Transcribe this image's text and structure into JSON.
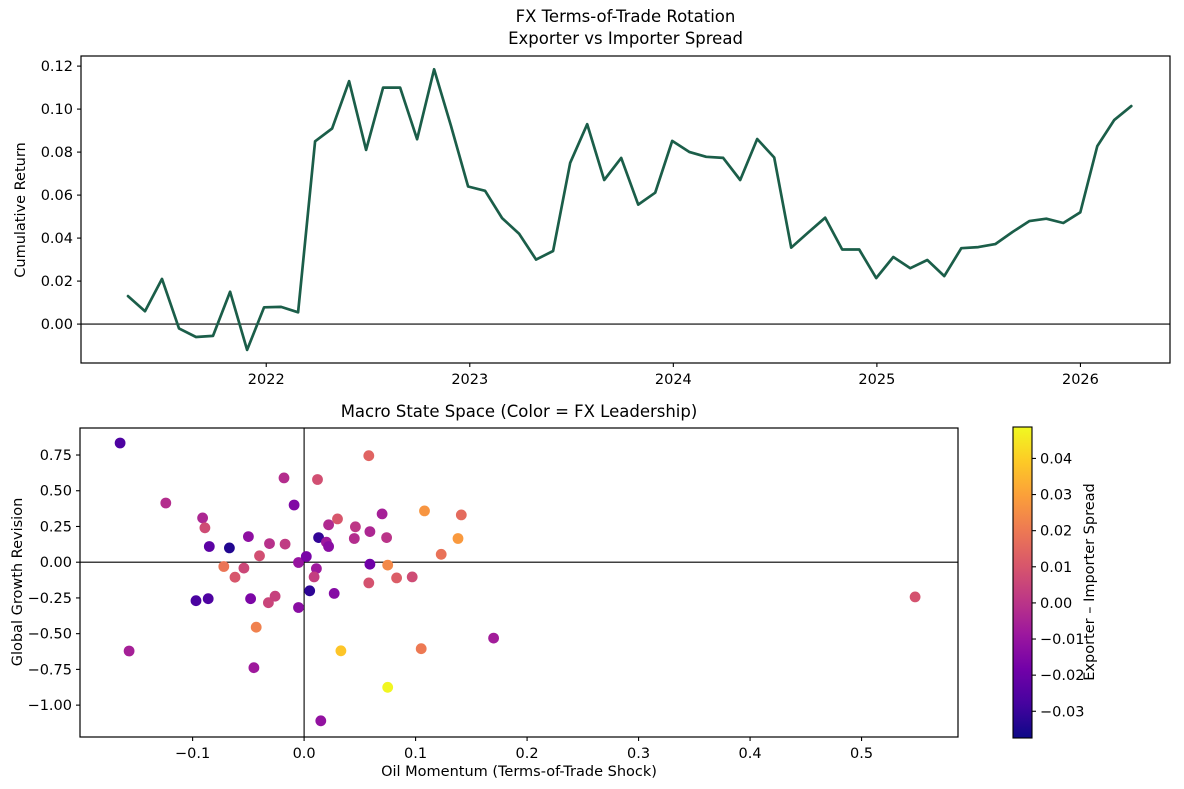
{
  "figure": {
    "background": "#ffffff",
    "line_color": "#1b5e49",
    "colormap": "plasma",
    "text_color": "#000000"
  },
  "chart_data": [
    {
      "type": "line",
      "title": "FX Terms-of-Trade Rotation",
      "subtitle": "Exporter vs Importer Spread",
      "xlabel": "",
      "ylabel": "Cumulative Return",
      "xlim": [
        2021.09,
        2026.44
      ],
      "ylim": [
        -0.0181,
        0.1247
      ],
      "x_start": 2021.321,
      "x_end": 2026.25,
      "x_ticks": [
        2022,
        2023,
        2024,
        2025,
        2026
      ],
      "x_tick_labels": [
        "2022",
        "2023",
        "2024",
        "2025",
        "2026"
      ],
      "y_ticks": [
        0.0,
        0.02,
        0.04,
        0.06,
        0.08,
        0.1,
        0.12
      ],
      "y_tick_labels": [
        "0.00",
        "0.02",
        "0.04",
        "0.06",
        "0.08",
        "0.10",
        "0.12"
      ],
      "zero_line": 0.0,
      "grid": false,
      "values": [
        0.013,
        0.006,
        0.021,
        -0.002,
        -0.006,
        -0.0055,
        0.015,
        -0.012,
        0.0078,
        0.008,
        0.0055,
        0.085,
        0.091,
        0.113,
        0.081,
        0.11,
        0.11,
        0.086,
        0.1185,
        0.092,
        0.064,
        0.062,
        0.0493,
        0.042,
        0.03,
        0.034,
        0.075,
        0.093,
        0.067,
        0.0773,
        0.0556,
        0.0611,
        0.0852,
        0.0801,
        0.0778,
        0.0773,
        0.067,
        0.0861,
        0.0775,
        0.0356,
        0.0426,
        0.0495,
        0.0347,
        0.0347,
        0.0214,
        0.0312,
        0.026,
        0.0298,
        0.0223,
        0.0353,
        0.0358,
        0.0372,
        0.0428,
        0.0479,
        0.049,
        0.047,
        0.052,
        0.0828,
        0.095,
        0.1014
      ]
    },
    {
      "type": "scatter",
      "title": "Macro State Space (Color = FX Leadership)",
      "xlabel": "Oil Momentum (Terms-of-Trade Shock)",
      "ylabel": "Global Growth Revision",
      "xlim": [
        -0.201,
        0.5865
      ],
      "ylim": [
        -1.223,
        0.939
      ],
      "x_ticks": [
        -0.1,
        0.0,
        0.1,
        0.2,
        0.3,
        0.4,
        0.5
      ],
      "x_tick_labels": [
        "−0.1",
        "0.0",
        "0.1",
        "0.2",
        "0.3",
        "0.4",
        "0.5"
      ],
      "y_ticks": [
        0.75,
        0.5,
        0.25,
        0.0,
        -0.25,
        -0.5,
        -0.75,
        -1.0
      ],
      "y_tick_labels": [
        "0.75",
        "0.50",
        "0.25",
        "0.00",
        "−0.25",
        "−0.50",
        "−0.75",
        "−1.00"
      ],
      "zero_cross_lines": true,
      "grid": false,
      "points": [
        [
          -0.165,
          0.834,
          -0.026
        ],
        [
          -0.124,
          0.414,
          -0.002
        ],
        [
          -0.091,
          0.31,
          -0.004
        ],
        [
          -0.089,
          0.241,
          0.007
        ],
        [
          -0.085,
          0.11,
          -0.023
        ],
        [
          -0.067,
          0.1,
          -0.034
        ],
        [
          -0.05,
          0.179,
          -0.012
        ],
        [
          -0.031,
          0.13,
          -0.001
        ],
        [
          -0.017,
          0.127,
          0.002
        ],
        [
          -0.04,
          0.045,
          0.008
        ],
        [
          -0.018,
          0.59,
          -0.002
        ],
        [
          0.012,
          0.579,
          0.008
        ],
        [
          -0.009,
          0.4,
          -0.015
        ],
        [
          0.058,
          0.745,
          0.014
        ],
        [
          -0.072,
          -0.03,
          0.019
        ],
        [
          -0.062,
          -0.105,
          0.01
        ],
        [
          -0.054,
          -0.041,
          0.006
        ],
        [
          -0.043,
          -0.455,
          0.022
        ],
        [
          -0.045,
          -0.738,
          -0.008
        ],
        [
          -0.097,
          -0.269,
          -0.027
        ],
        [
          -0.086,
          -0.255,
          -0.026
        ],
        [
          -0.048,
          -0.255,
          -0.016
        ],
        [
          -0.032,
          -0.283,
          0.005
        ],
        [
          -0.026,
          -0.238,
          0.004
        ],
        [
          -0.005,
          -0.317,
          -0.013
        ],
        [
          -0.005,
          -0.002,
          -0.01
        ],
        [
          0.002,
          0.04,
          -0.017
        ],
        [
          0.013,
          0.172,
          -0.031
        ],
        [
          0.02,
          0.14,
          -0.008
        ],
        [
          0.022,
          0.11,
          -0.013
        ],
        [
          0.022,
          0.262,
          -0.003
        ],
        [
          0.03,
          0.303,
          0.01
        ],
        [
          0.046,
          0.248,
          0.001
        ],
        [
          0.045,
          0.166,
          -0.002
        ],
        [
          0.059,
          0.214,
          -0.004
        ],
        [
          0.07,
          0.338,
          -0.006
        ],
        [
          0.074,
          0.172,
          0.0
        ],
        [
          0.108,
          0.359,
          0.027
        ],
        [
          0.141,
          0.331,
          0.016
        ],
        [
          0.138,
          0.166,
          0.028
        ],
        [
          0.123,
          0.055,
          0.018
        ],
        [
          0.059,
          -0.014,
          -0.019
        ],
        [
          0.075,
          -0.02,
          0.024
        ],
        [
          0.011,
          -0.045,
          -0.008
        ],
        [
          0.009,
          -0.103,
          0.003
        ],
        [
          0.058,
          -0.145,
          0.009
        ],
        [
          0.083,
          -0.11,
          0.012
        ],
        [
          0.097,
          -0.103,
          0.007
        ],
        [
          0.005,
          -0.2,
          -0.032
        ],
        [
          0.027,
          -0.218,
          -0.014
        ],
        [
          0.033,
          -0.62,
          0.038
        ],
        [
          0.075,
          -0.875,
          0.048
        ],
        [
          0.105,
          -0.605,
          0.02
        ],
        [
          0.17,
          -0.531,
          -0.007
        ],
        [
          0.548,
          -0.243,
          0.009
        ],
        [
          0.015,
          -1.11,
          -0.011
        ],
        [
          -0.157,
          -0.621,
          -0.006
        ]
      ],
      "colorbar": {
        "label": "Exporter – Importer Spread",
        "vmin": -0.0374,
        "vmax": 0.0487,
        "ticks": [
          0.04,
          0.03,
          0.02,
          0.01,
          0.0,
          -0.01,
          -0.02,
          -0.03
        ],
        "tick_labels": [
          "0.04",
          "0.03",
          "0.02",
          "0.01",
          "0.00",
          "−0.01",
          "−0.02",
          "−0.03"
        ]
      }
    }
  ]
}
